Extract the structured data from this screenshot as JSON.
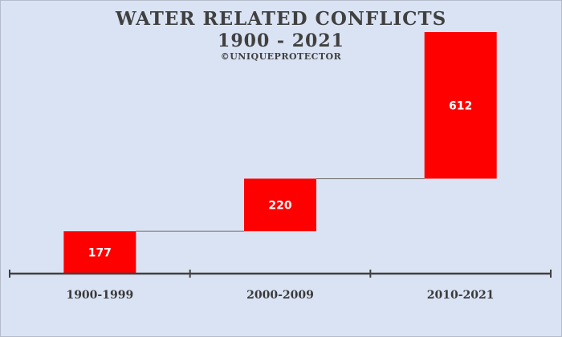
{
  "chart_data": {
    "type": "waterfall",
    "title": "WATER RELATED CONFLICTS",
    "subtitle": "1900 - 2021",
    "credit": "©UNIQUEPROTECTOR",
    "categories": [
      "1900-1999",
      "2000-2009",
      "2010-2021"
    ],
    "values": [
      177,
      220,
      612
    ],
    "xlabel": "",
    "ylabel": "",
    "ylim": [
      0,
      1009
    ],
    "bar_color": "#ff0000",
    "connector_color": "#7f7f7f",
    "axis_color": "#404040",
    "label_color": "#ffffff"
  }
}
